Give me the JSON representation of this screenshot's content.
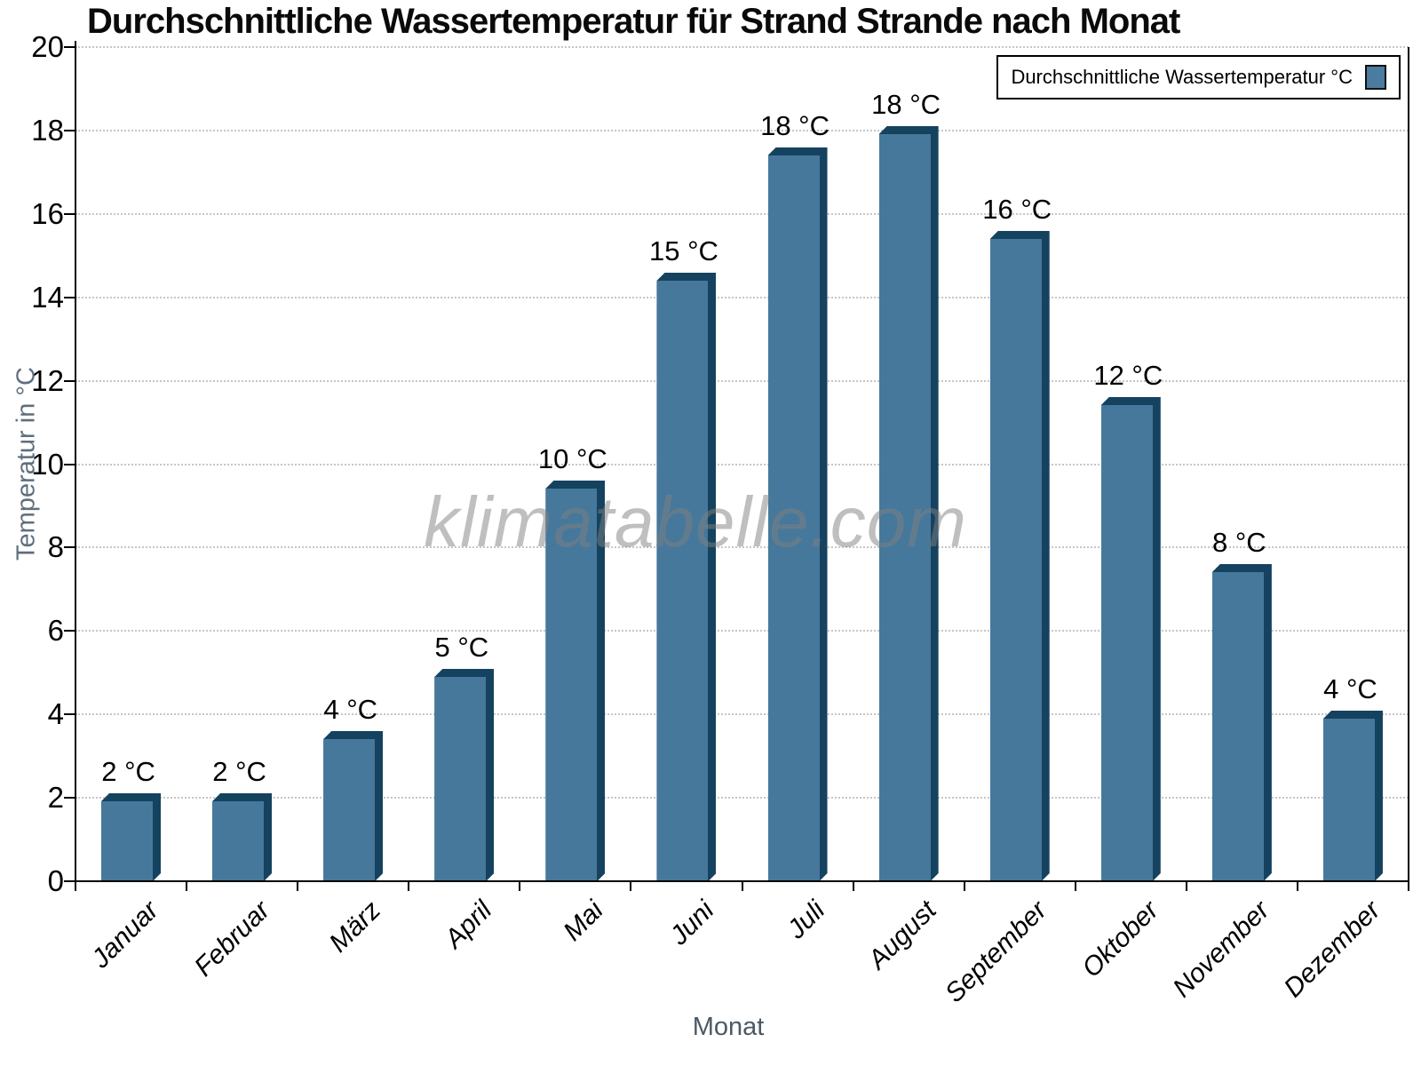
{
  "chart_data": {
    "type": "bar",
    "title": "Durchschnittliche Wassertemperatur für Strand Strande nach Monat",
    "xlabel": "Monat",
    "ylabel": "Temperatur in °C",
    "legend": {
      "label": "Durchschnittliche Wassertemperatur °C",
      "position": "top-right"
    },
    "categories": [
      "Januar",
      "Februar",
      "März",
      "April",
      "Mai",
      "Juni",
      "Juli",
      "August",
      "September",
      "Oktober",
      "November",
      "Dezember"
    ],
    "values": [
      2.1,
      2.1,
      3.6,
      5.1,
      9.6,
      14.6,
      17.6,
      18.1,
      15.6,
      11.6,
      7.6,
      4.1
    ],
    "value_labels": [
      "2 °C",
      "2 °C",
      "4 °C",
      "5 °C",
      "10 °C",
      "15 °C",
      "18 °C",
      "18 °C",
      "16 °C",
      "12 °C",
      "8 °C",
      "4 °C"
    ],
    "ylim": [
      0,
      20
    ],
    "yticks": [
      0,
      2,
      4,
      6,
      8,
      10,
      12,
      14,
      16,
      18,
      20
    ],
    "grid": "horizontal-dotted",
    "bar_color": "#46789B",
    "bar_edge_color": "#15425F",
    "legend_swatch_color": "#4A7CA0",
    "watermark": "klimatabelle.com"
  }
}
